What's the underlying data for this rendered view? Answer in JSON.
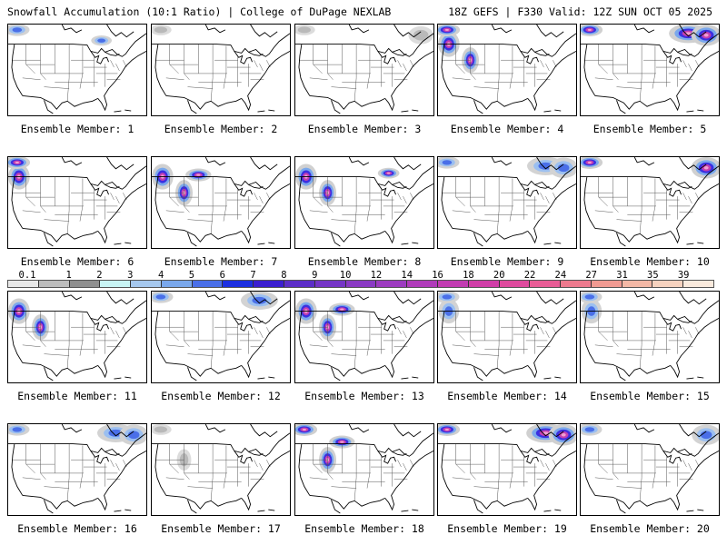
{
  "header": {
    "left_title": "Snowfall Accumulation (10:1 Ratio) | College of DuPage NEXLAB",
    "right_title": "18Z GEFS | F330 Valid: 12Z SUN OCT 05 2025"
  },
  "panels": [
    {
      "label": "Ensemble Member: 1",
      "snow_regions": [
        "northwest-canada",
        "great-lakes-north"
      ],
      "intensity": "moderate"
    },
    {
      "label": "Ensemble Member: 2",
      "snow_regions": [
        "northwest-canada"
      ],
      "intensity": "light"
    },
    {
      "label": "Ensemble Member: 3",
      "snow_regions": [
        "northwest-canada",
        "quebec"
      ],
      "intensity": "light"
    },
    {
      "label": "Ensemble Member: 4",
      "snow_regions": [
        "pacific-northwest",
        "rockies",
        "northwest-canada"
      ],
      "intensity": "heavy"
    },
    {
      "label": "Ensemble Member: 5",
      "snow_regions": [
        "northwest-canada",
        "ontario",
        "quebec"
      ],
      "intensity": "heavy"
    },
    {
      "label": "Ensemble Member: 6",
      "snow_regions": [
        "pacific-northwest",
        "northwest-canada"
      ],
      "intensity": "heavy"
    },
    {
      "label": "Ensemble Member: 7",
      "snow_regions": [
        "pacific-northwest",
        "rockies",
        "prairies"
      ],
      "intensity": "heavy"
    },
    {
      "label": "Ensemble Member: 8",
      "snow_regions": [
        "pacific-northwest",
        "rockies",
        "great-lakes-north"
      ],
      "intensity": "heavy"
    },
    {
      "label": "Ensemble Member: 9",
      "snow_regions": [
        "northwest-canada",
        "ontario",
        "quebec"
      ],
      "intensity": "moderate"
    },
    {
      "label": "Ensemble Member: 10",
      "snow_regions": [
        "northwest-canada",
        "quebec"
      ],
      "intensity": "heavy"
    },
    {
      "label": "Ensemble Member: 11",
      "snow_regions": [
        "pacific-northwest",
        "rockies"
      ],
      "intensity": "heavy"
    },
    {
      "label": "Ensemble Member: 12",
      "snow_regions": [
        "northwest-canada",
        "ontario"
      ],
      "intensity": "moderate"
    },
    {
      "label": "Ensemble Member: 13",
      "snow_regions": [
        "pacific-northwest",
        "rockies",
        "prairies"
      ],
      "intensity": "heavy"
    },
    {
      "label": "Ensemble Member: 14",
      "snow_regions": [
        "pacific-northwest",
        "northwest-canada"
      ],
      "intensity": "moderate"
    },
    {
      "label": "Ensemble Member: 15",
      "snow_regions": [
        "pacific-northwest",
        "northwest-canada"
      ],
      "intensity": "moderate"
    },
    {
      "label": "Ensemble Member: 16",
      "snow_regions": [
        "northwest-canada",
        "ontario",
        "quebec"
      ],
      "intensity": "moderate"
    },
    {
      "label": "Ensemble Member: 17",
      "snow_regions": [
        "northwest-canada",
        "rockies"
      ],
      "intensity": "light"
    },
    {
      "label": "Ensemble Member: 18",
      "snow_regions": [
        "northwest-canada",
        "rockies",
        "prairies"
      ],
      "intensity": "heavy"
    },
    {
      "label": "Ensemble Member: 19",
      "snow_regions": [
        "northwest-canada",
        "ontario",
        "quebec"
      ],
      "intensity": "heavy"
    },
    {
      "label": "Ensemble Member: 20",
      "snow_regions": [
        "northwest-canada",
        "quebec"
      ],
      "intensity": "moderate"
    }
  ],
  "colorbar": {
    "ticks": [
      "0.1",
      "1",
      "2",
      "3",
      "4",
      "5",
      "6",
      "7",
      "8",
      "9",
      "10",
      "12",
      "14",
      "16",
      "18",
      "20",
      "22",
      "24",
      "27",
      "31",
      "35",
      "39"
    ],
    "colors": [
      "#e8e8e8",
      "#bdbdbd",
      "#8f8f8f",
      "#c9f5f5",
      "#a6c8ee",
      "#7aa8ec",
      "#4a6fe8",
      "#1c2fe0",
      "#3b1fd0",
      "#5c2ec8",
      "#7535c6",
      "#8a3ac4",
      "#9d3cc0",
      "#b03cba",
      "#c23cb2",
      "#d03ea8",
      "#de4a9e",
      "#e85c96",
      "#ed7a8e",
      "#f09a92",
      "#f3b8a6",
      "#f6d2bf",
      "#faeadd"
    ]
  },
  "style": {
    "state_line_color": "#000000",
    "snow_light_color": "#c8c8c8",
    "snow_moderate_color": "#6a86ea",
    "snow_heavy_color": "#c33fb1"
  }
}
